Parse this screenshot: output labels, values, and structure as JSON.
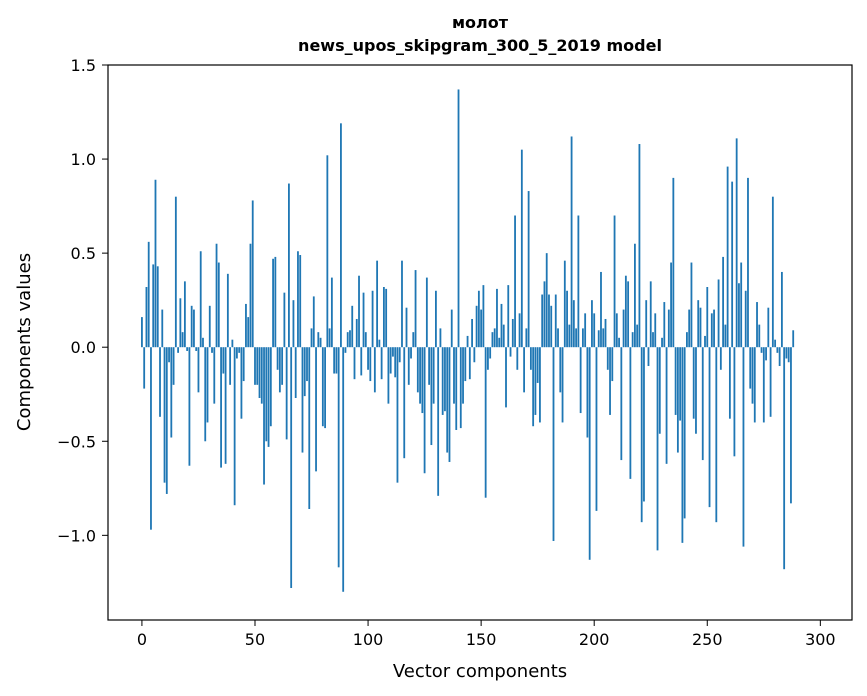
{
  "chart_data": {
    "type": "bar",
    "title_line1": "молот",
    "title_line2": "news_upos_skipgram_300_5_2019 model",
    "xlabel": "Vector components",
    "ylabel": "Components values",
    "xlim": [
      -15,
      314
    ],
    "ylim": [
      -1.45,
      1.5
    ],
    "xticks": [
      0,
      50,
      100,
      150,
      200,
      250,
      300
    ],
    "xtick_labels": [
      "0",
      "50",
      "100",
      "150",
      "200",
      "250",
      "300"
    ],
    "yticks": [
      -1.0,
      -0.5,
      0.0,
      0.5,
      1.0,
      1.5
    ],
    "ytick_labels": [
      "−1.0",
      "−0.5",
      "0.0",
      "0.5",
      "1.0",
      "1.5"
    ],
    "bar_color": "#1f77b4",
    "values": [
      0.16,
      -0.22,
      0.32,
      0.56,
      -0.97,
      0.44,
      0.89,
      0.43,
      -0.37,
      0.2,
      -0.72,
      -0.78,
      -0.08,
      -0.48,
      -0.2,
      0.8,
      -0.03,
      0.26,
      0.08,
      0.35,
      -0.02,
      -0.63,
      0.22,
      0.2,
      -0.02,
      -0.24,
      0.51,
      0.05,
      -0.5,
      -0.4,
      0.22,
      -0.03,
      -0.3,
      0.55,
      0.45,
      -0.64,
      -0.14,
      -0.62,
      0.39,
      -0.2,
      0.04,
      -0.84,
      -0.06,
      -0.03,
      -0.38,
      -0.18,
      0.23,
      0.16,
      0.55,
      0.78,
      -0.2,
      -0.2,
      -0.27,
      -0.3,
      -0.73,
      -0.5,
      -0.53,
      -0.42,
      0.47,
      0.48,
      -0.12,
      -0.24,
      -0.2,
      0.29,
      -0.49,
      0.87,
      -1.28,
      0.25,
      -0.27,
      0.51,
      0.49,
      -0.56,
      -0.26,
      -0.18,
      -0.86,
      0.1,
      0.27,
      -0.66,
      0.08,
      0.05,
      -0.42,
      -0.43,
      1.02,
      0.1,
      0.37,
      -0.14,
      -0.14,
      -1.17,
      1.19,
      -1.3,
      -0.03,
      0.08,
      0.09,
      0.22,
      -0.17,
      0.15,
      0.38,
      -0.15,
      0.29,
      0.08,
      -0.12,
      -0.18,
      0.3,
      -0.24,
      0.46,
      0.04,
      -0.17,
      0.32,
      0.31,
      -0.3,
      -0.14,
      -0.05,
      -0.16,
      -0.72,
      -0.08,
      0.46,
      -0.59,
      0.21,
      -0.2,
      -0.06,
      0.08,
      0.41,
      -0.24,
      -0.3,
      -0.35,
      -0.67,
      0.37,
      -0.2,
      -0.52,
      -0.3,
      0.3,
      -0.79,
      0.1,
      -0.36,
      -0.34,
      -0.56,
      -0.61,
      0.2,
      -0.3,
      -0.44,
      1.37,
      -0.43,
      -0.3,
      -0.18,
      0.06,
      -0.17,
      0.15,
      -0.08,
      0.22,
      0.3,
      0.2,
      0.33,
      -0.8,
      -0.12,
      -0.06,
      0.08,
      0.1,
      0.31,
      0.05,
      0.23,
      0.12,
      -0.32,
      0.33,
      -0.05,
      0.15,
      0.7,
      -0.12,
      0.18,
      1.05,
      -0.24,
      0.1,
      0.83,
      -0.12,
      -0.42,
      -0.36,
      -0.19,
      -0.4,
      0.28,
      0.35,
      0.5,
      0.28,
      0.22,
      -1.03,
      0.28,
      0.1,
      -0.24,
      -0.4,
      0.46,
      0.3,
      0.12,
      1.12,
      0.25,
      0.1,
      0.7,
      -0.35,
      0.1,
      0.18,
      -0.48,
      -1.13,
      0.25,
      0.18,
      -0.87,
      0.09,
      0.4,
      0.1,
      0.15,
      -0.12,
      -0.36,
      -0.18,
      0.7,
      0.18,
      0.05,
      -0.6,
      0.2,
      0.38,
      0.35,
      -0.7,
      0.08,
      0.55,
      0.12,
      1.08,
      -0.93,
      -0.82,
      0.25,
      -0.1,
      0.35,
      0.08,
      0.18,
      -1.08,
      -0.46,
      0.05,
      0.24,
      -0.62,
      0.2,
      0.45,
      0.9,
      -0.36,
      -0.56,
      -0.39,
      -1.04,
      -0.91,
      0.08,
      0.2,
      0.45,
      -0.38,
      -0.46,
      0.25,
      0.21,
      -0.6,
      0.06,
      0.32,
      -0.85,
      0.18,
      0.2,
      -0.93,
      0.36,
      -0.12,
      0.48,
      0.12,
      0.96,
      -0.38,
      0.88,
      -0.58,
      1.11,
      0.34,
      0.45,
      -1.06,
      0.3,
      0.9,
      -0.22,
      -0.3,
      -0.4,
      0.24,
      0.12,
      -0.03,
      -0.4,
      -0.07,
      0.21,
      -0.37,
      0.8,
      0.04,
      -0.03,
      -0.1,
      0.4,
      -1.18,
      -0.06,
      -0.08,
      -0.83,
      0.09
    ]
  }
}
